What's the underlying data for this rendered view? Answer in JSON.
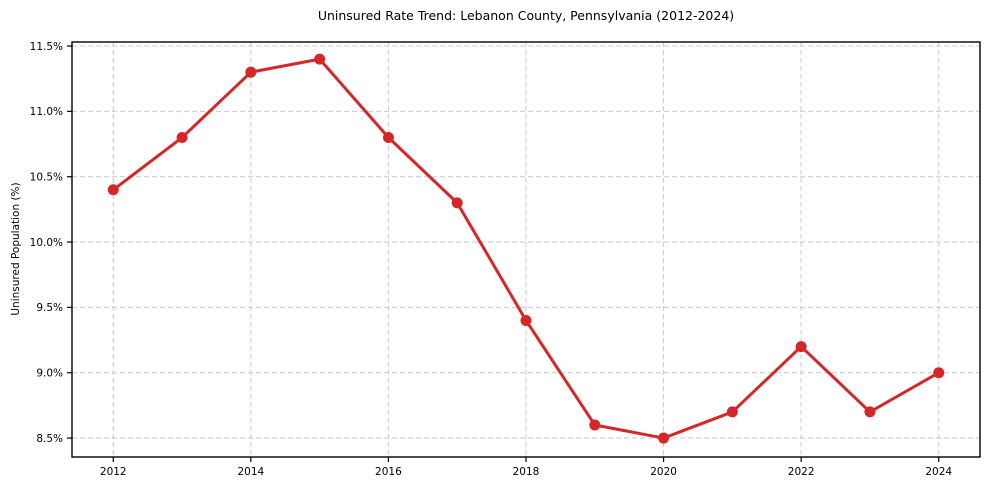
{
  "chart_data": {
    "type": "line",
    "title": "Uninsured Rate Trend: Lebanon County, Pennsylvania (2012-2024)",
    "xlabel": "",
    "ylabel": "Uninsured Population (%)",
    "x": [
      2012,
      2013,
      2014,
      2015,
      2016,
      2017,
      2018,
      2019,
      2020,
      2021,
      2022,
      2023,
      2024
    ],
    "series": [
      {
        "name": "Uninsured rate",
        "values": [
          10.4,
          10.8,
          11.3,
          11.4,
          10.8,
          10.3,
          9.4,
          8.6,
          8.5,
          8.7,
          9.2,
          8.7,
          9.0
        ]
      }
    ],
    "xticks": [
      2012,
      2014,
      2016,
      2018,
      2020,
      2022,
      2024
    ],
    "xtick_labels": [
      "2012",
      "2014",
      "2016",
      "2018",
      "2020",
      "2022",
      "2024"
    ],
    "yticks": [
      8.5,
      9.0,
      9.5,
      10.0,
      10.5,
      11.0,
      11.5
    ],
    "ytick_labels": [
      "8.5%",
      "9.0%",
      "9.5%",
      "10.0%",
      "10.5%",
      "11.0%",
      "11.5%"
    ],
    "xlim": [
      2011.4,
      2024.6
    ],
    "ylim": [
      8.355,
      11.531
    ],
    "grid": true,
    "legend": false,
    "line_color": "#d62728",
    "marker": "circle",
    "marker_radius": 5.5,
    "grid_color": "#c9c9c9",
    "spine_color": "#000000",
    "background": "#ffffff"
  }
}
